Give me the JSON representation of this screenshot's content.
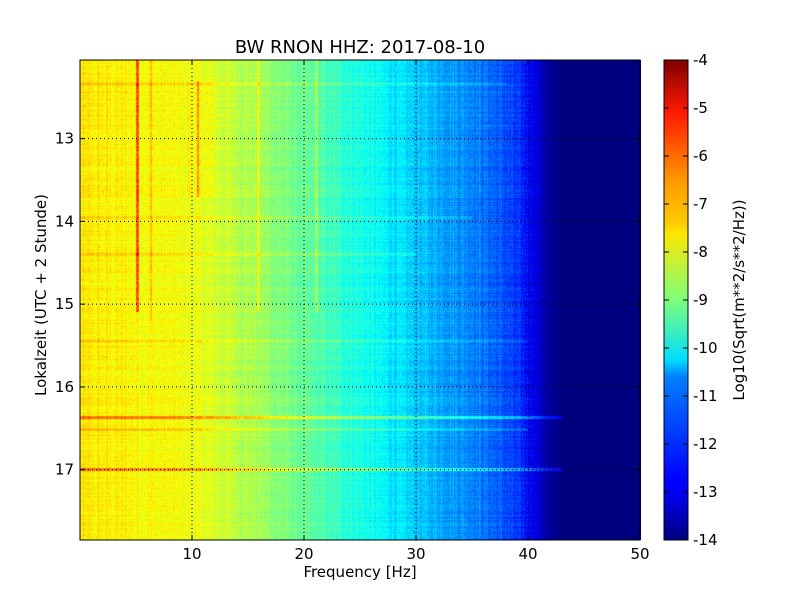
{
  "chart_data": {
    "type": "heatmap",
    "title": "BW RNON HHZ: 2017-08-10",
    "xlabel": "Frequency [Hz]",
    "ylabel": "Lokalzeit (UTC + 2 Stunde)",
    "xlim": [
      0,
      50
    ],
    "ylim": [
      17.85,
      12.05
    ],
    "x_ticks": [
      10,
      20,
      30,
      40,
      50
    ],
    "y_ticks": [
      13,
      14,
      15,
      16,
      17
    ],
    "grid": true,
    "colormap": "jet",
    "colorbar": {
      "label": "Log10(Sqrt(m**2/s**2/Hz))",
      "range": [
        -14,
        -4
      ],
      "ticks": [
        -4,
        -5,
        -6,
        -7,
        -8,
        -9,
        -10,
        -11,
        -12,
        -13,
        -14
      ]
    },
    "spectrum_profile": [
      {
        "freq": 0,
        "value": -7.6
      },
      {
        "freq": 5,
        "value": -7.7
      },
      {
        "freq": 10,
        "value": -7.9
      },
      {
        "freq": 15,
        "value": -8.5
      },
      {
        "freq": 20,
        "value": -9.3
      },
      {
        "freq": 25,
        "value": -10.0
      },
      {
        "freq": 30,
        "value": -10.8
      },
      {
        "freq": 35,
        "value": -11.4
      },
      {
        "freq": 38,
        "value": -12.0
      },
      {
        "freq": 40,
        "value": -12.6
      },
      {
        "freq": 41.5,
        "value": -13.6
      },
      {
        "freq": 43,
        "value": -14.0
      },
      {
        "freq": 50,
        "value": -14.0
      }
    ],
    "horizontal_features": [
      {
        "time": 16.37,
        "value_offset": 1.2,
        "max_freq": 43
      },
      {
        "time": 16.52,
        "value_offset": 0.6,
        "max_freq": 40
      },
      {
        "time": 17.0,
        "value_offset": 1.3,
        "max_freq": 43
      },
      {
        "time": 12.33,
        "value_offset": 0.4,
        "max_freq": 38
      },
      {
        "time": 13.95,
        "value_offset": 0.4,
        "max_freq": 35
      },
      {
        "time": 14.4,
        "value_offset": 0.4,
        "max_freq": 30
      },
      {
        "time": 15.45,
        "value_offset": 0.3,
        "max_freq": 40
      }
    ],
    "vertical_features": [
      {
        "freq": 5.1,
        "value_offset": 1.8,
        "time_range": [
          12.05,
          15.1
        ]
      },
      {
        "freq": 6.3,
        "value_offset": 0.6,
        "time_range": [
          12.05,
          15.2
        ]
      },
      {
        "freq": 10.5,
        "value_offset": 1.0,
        "time_range": [
          12.3,
          13.7
        ]
      },
      {
        "freq": 15.9,
        "value_offset": 0.8,
        "time_range": [
          12.05,
          15.1
        ]
      },
      {
        "freq": 21.1,
        "value_offset": 0.9,
        "time_range": [
          12.05,
          15.1
        ]
      }
    ]
  }
}
